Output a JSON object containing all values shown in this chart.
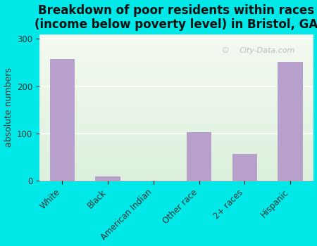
{
  "categories": [
    "White",
    "Black",
    "American Indian",
    "Other race",
    "2+ races",
    "Hispanic"
  ],
  "values": [
    258,
    10,
    0,
    103,
    57,
    252
  ],
  "bar_color": "#b8a0cc",
  "title": "Breakdown of poor residents within races\n(income below poverty level) in Bristol, GA",
  "ylabel": "absolute numbers",
  "ylim": [
    0,
    310
  ],
  "yticks": [
    0,
    100,
    200,
    300
  ],
  "background_color": "#00e8e8",
  "plot_bg_color_top": "#f4faf0",
  "plot_bg_color_bottom": "#ddf0dd",
  "watermark": "City-Data.com",
  "title_fontsize": 12,
  "ylabel_fontsize": 9,
  "tick_fontsize": 8.5
}
